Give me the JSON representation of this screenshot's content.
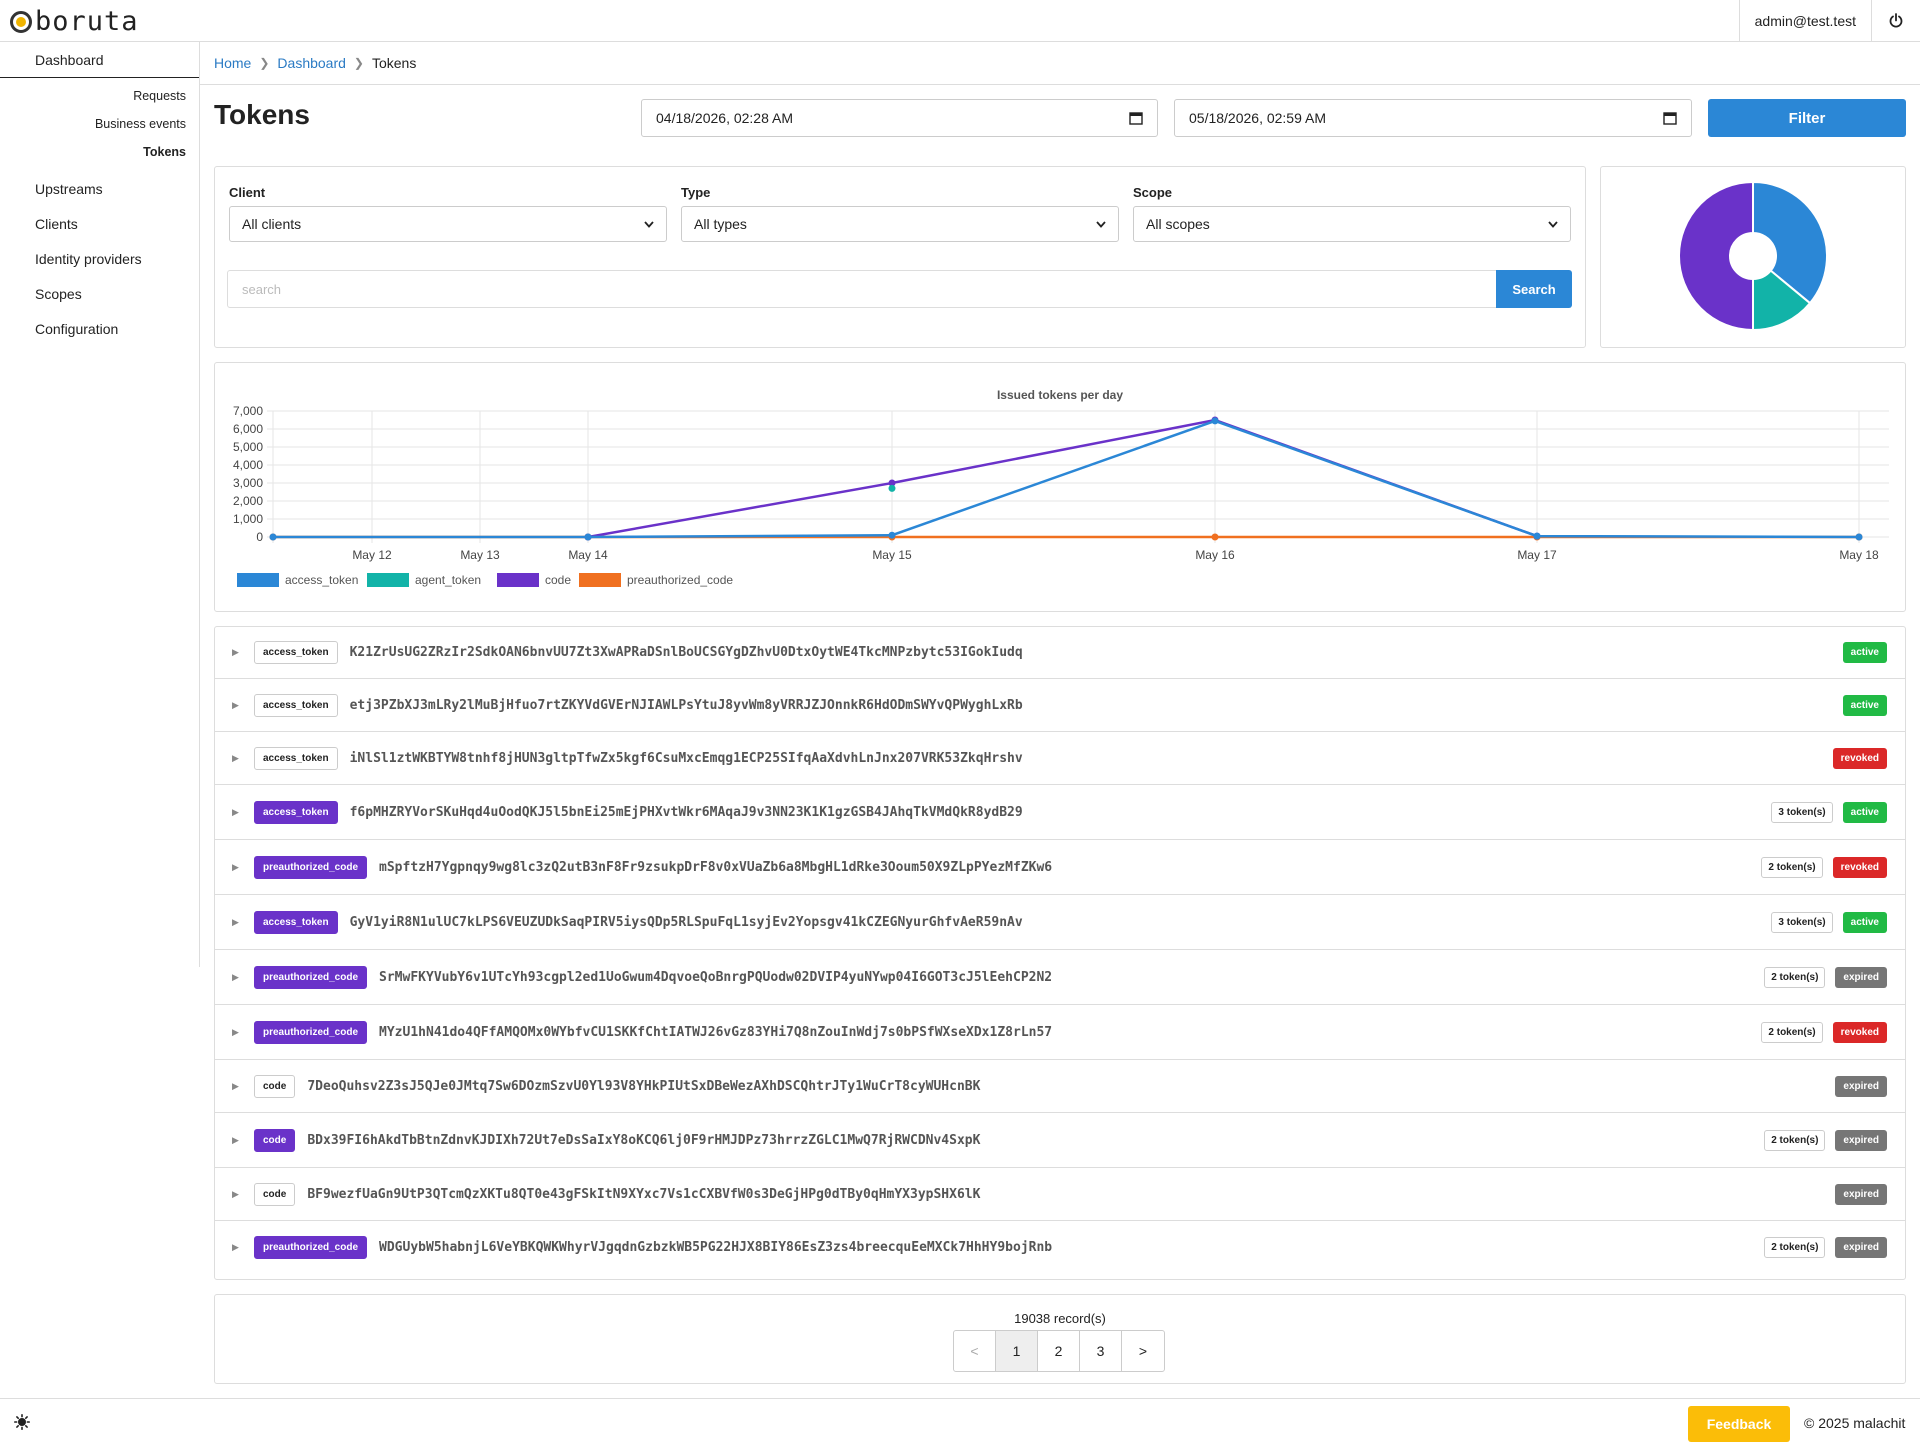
{
  "app": {
    "logo_text": "boruta",
    "user_email": "admin@test.test"
  },
  "sidebar": {
    "dashboard": "Dashboard",
    "sub_items": [
      "Requests",
      "Business events",
      "Tokens"
    ],
    "items": [
      "Upstreams",
      "Clients",
      "Identity providers",
      "Scopes",
      "Configuration"
    ]
  },
  "breadcrumb": {
    "home": "Home",
    "dashboard": "Dashboard",
    "current": "Tokens"
  },
  "page": {
    "title": "Tokens"
  },
  "filters": {
    "start_date": "04/18/2026, 02:28 AM",
    "end_date": "05/18/2026, 02:59 AM",
    "filter_label": "Filter",
    "client_label": "Client",
    "client_value": "All clients",
    "type_label": "Type",
    "type_value": "All types",
    "scope_label": "Scope",
    "scope_value": "All scopes",
    "search_placeholder": "search",
    "search_label": "Search"
  },
  "colors": {
    "access_token": "#2b87d6",
    "agent_token": "#12b3a8",
    "code": "#6a32c9",
    "preauthorized_code": "#f07020",
    "active": "#21ba45",
    "revoked": "#db2828",
    "expired": "#767676"
  },
  "pie_chart": {
    "type": "pie",
    "slices": [
      {
        "label": "access_token",
        "value": 36,
        "color": "#2b87d6"
      },
      {
        "label": "agent_token",
        "value": 14,
        "color": "#12b3a8"
      },
      {
        "label": "code",
        "value": 50,
        "color": "#6a32c9"
      }
    ]
  },
  "chart_data": {
    "type": "line",
    "title": "Issued tokens per day",
    "x_ticks": [
      "May 12",
      "May 13",
      "May 14",
      "May 15",
      "May 16",
      "May 17",
      "May 18"
    ],
    "y_ticks": [
      "0",
      "1,000",
      "2,000",
      "3,000",
      "4,000",
      "5,000",
      "6,000",
      "7,000"
    ],
    "ylim": [
      0,
      7000
    ],
    "grid": true,
    "legend_placement": "bottom-left",
    "series": [
      {
        "name": "access_token",
        "color": "#2b87d6",
        "points": [
          [
            "May 11",
            0
          ],
          [
            "May 14",
            0
          ],
          [
            "May 15",
            100
          ],
          [
            "May 16",
            6450
          ],
          [
            "May 17",
            50
          ],
          [
            "May 18",
            0
          ]
        ]
      },
      {
        "name": "agent_token",
        "color": "#12b3a8",
        "points": [
          [
            "May 15",
            2700
          ]
        ]
      },
      {
        "name": "code",
        "color": "#6a32c9",
        "points": [
          [
            "May 14",
            0
          ],
          [
            "May 15",
            3000
          ],
          [
            "May 16",
            6500
          ],
          [
            "May 17",
            50
          ]
        ]
      },
      {
        "name": "preauthorized_code",
        "color": "#f07020",
        "points": [
          [
            "May 11",
            0
          ],
          [
            "May 14",
            0
          ],
          [
            "May 15",
            0
          ],
          [
            "May 16",
            0
          ],
          [
            "May 17",
            0
          ],
          [
            "May 18",
            0
          ]
        ]
      }
    ]
  },
  "tokens": [
    {
      "type": "access_token",
      "filled": false,
      "value": "K21ZrUsUG2ZRzIr2SdkOAN6bnvUU7Zt3XwAPRaDSnlBoUCSGYgDZhvU0DtxOytWE4TkcMNPzbytc53IGokIudq",
      "count": "",
      "status": "active"
    },
    {
      "type": "access_token",
      "filled": false,
      "value": "etj3PZbXJ3mLRy2lMuBjHfuo7rtZKYVdGVErNJIAWLPsYtuJ8yvWm8yVRRJZJOnnkR6HdODmSWYvQPWyghLxRb",
      "count": "",
      "status": "active"
    },
    {
      "type": "access_token",
      "filled": false,
      "value": "iNlSl1ztWKBTYW8tnhf8jHUN3gltpTfwZx5kgf6CsuMxcEmqg1ECP25SIfqAaXdvhLnJnx207VRK53ZkqHrshv",
      "count": "",
      "status": "revoked"
    },
    {
      "type": "access_token",
      "filled": true,
      "value": "f6pMHZRYVorSKuHqd4uOodQKJ5l5bnEi25mEjPHXvtWkr6MAqaJ9v3NN23K1K1gzGSB4JAhqTkVMdQkR8ydB29",
      "count": "3 token(s)",
      "status": "active"
    },
    {
      "type": "preauthorized_code",
      "filled": true,
      "value": "mSpftzH7Ygpnqy9wg8lc3zQ2utB3nF8Fr9zsukpDrF8v0xVUaZb6a8MbgHL1dRke3Ooum50X9ZLpPYezMfZKw6",
      "count": "2 token(s)",
      "status": "revoked"
    },
    {
      "type": "access_token",
      "filled": true,
      "value": "GyV1yiR8N1ulUC7kLPS6VEUZUDkSaqPIRV5iysQDp5RLSpuFqL1syjEv2Yopsgv41kCZEGNyurGhfvAeR59nAv",
      "count": "3 token(s)",
      "status": "active"
    },
    {
      "type": "preauthorized_code",
      "filled": true,
      "value": "SrMwFKYVubY6v1UTcYh93cgpl2ed1UoGwum4DqvoeQoBnrgPQUodw02DVIP4yuNYwp04I6GOT3cJ5lEehCP2N2",
      "count": "2 token(s)",
      "status": "expired"
    },
    {
      "type": "preauthorized_code",
      "filled": true,
      "value": "MYzU1hN41do4QFfAMQOMx0WYbfvCU1SKKfChtIATWJ26vGz83YHi7Q8nZouInWdj7s0bPSfWXseXDx1Z8rLn57",
      "count": "2 token(s)",
      "status": "revoked"
    },
    {
      "type": "code",
      "filled": false,
      "value": "7DeoQuhsv2Z3sJ5QJe0JMtq7Sw6DOzmSzvU0Yl93V8YHkPIUtSxDBeWezAXhDSCQhtrJTy1WuCrT8cyWUHcnBK",
      "count": "",
      "status": "expired"
    },
    {
      "type": "code",
      "filled": true,
      "value": "BDx39FI6hAkdTbBtnZdnvKJDIXh72Ut7eDsSaIxY8oKCQ6lj0F9rHMJDPz73hrrzZGLC1MwQ7RjRWCDNv4SxpK",
      "count": "2 token(s)",
      "status": "expired"
    },
    {
      "type": "code",
      "filled": false,
      "value": "BF9wezfUaGn9UtP3QTcmQzXKTu8QT0e43gFSkItN9XYxc7Vs1cCXBVfW0s3DeGjHPg0dTBy0qHmYX3ypSHX6lK",
      "count": "",
      "status": "expired"
    },
    {
      "type": "preauthorized_code",
      "filled": true,
      "value": "WDGUybW5habnjL6VeYBKQWKWhyrVJgqdnGzbzkWB5PG22HJX8BIY86EsZ3zs4breecquEeMXCk7HhHY9bojRnb",
      "count": "2 token(s)",
      "status": "expired"
    }
  ],
  "pagination": {
    "records": "19038 record(s)",
    "prev": "<",
    "pages": [
      "1",
      "2",
      "3"
    ],
    "next": ">",
    "current": "1"
  },
  "footer": {
    "feedback": "Feedback",
    "copyright": "© 2025 malachit"
  }
}
